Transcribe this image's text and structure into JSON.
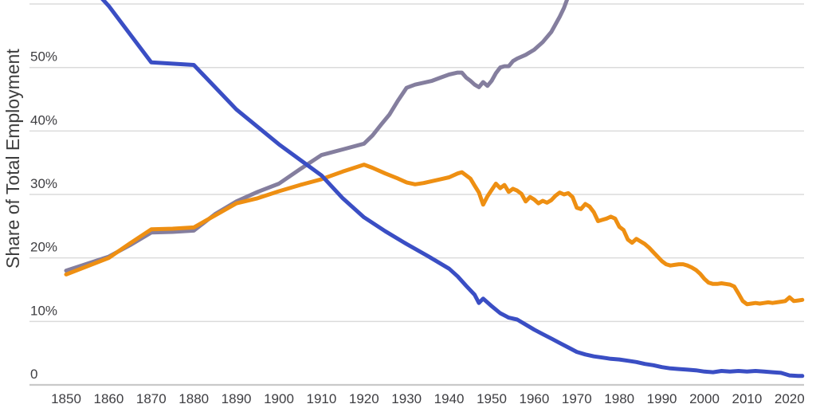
{
  "chart_data": {
    "type": "line",
    "title": "",
    "xlabel": "",
    "ylabel": "Share of Total Employment",
    "x_range_visible": [
      1850,
      2023
    ],
    "y_range_visible": [
      0,
      60.6
    ],
    "grid": true,
    "legend": "none visible (cropped above image)",
    "x_ticks": [
      1850,
      1860,
      1870,
      1880,
      1890,
      1900,
      1910,
      1920,
      1930,
      1940,
      1950,
      1960,
      1970,
      1980,
      1990,
      2000,
      2010,
      2020
    ],
    "y_ticks": [
      {
        "value": 0,
        "label": "0"
      },
      {
        "value": 10,
        "label": "10%"
      },
      {
        "value": 20,
        "label": "20%"
      },
      {
        "value": 30,
        "label": "30%"
      },
      {
        "value": 40,
        "label": "40%"
      },
      {
        "value": 50,
        "label": "50%"
      },
      {
        "value": 60,
        "label": ""
      }
    ],
    "series": [
      {
        "name": "slate-rising-line",
        "color": "#847E9E",
        "points": [
          [
            1850,
            18.0
          ],
          [
            1860,
            20.2
          ],
          [
            1865,
            22.0
          ],
          [
            1870,
            24.0
          ],
          [
            1875,
            24.1
          ],
          [
            1880,
            24.3
          ],
          [
            1885,
            26.9
          ],
          [
            1890,
            28.9
          ],
          [
            1895,
            30.4
          ],
          [
            1900,
            31.7
          ],
          [
            1905,
            34.0
          ],
          [
            1910,
            36.2
          ],
          [
            1915,
            37.1
          ],
          [
            1920,
            38.0
          ],
          [
            1922,
            39.3
          ],
          [
            1924,
            41.0
          ],
          [
            1926,
            42.6
          ],
          [
            1928,
            44.8
          ],
          [
            1930,
            46.8
          ],
          [
            1932,
            47.3
          ],
          [
            1934,
            47.6
          ],
          [
            1936,
            47.9
          ],
          [
            1938,
            48.4
          ],
          [
            1940,
            48.9
          ],
          [
            1942,
            49.2
          ],
          [
            1943,
            49.2
          ],
          [
            1944,
            48.4
          ],
          [
            1945,
            47.9
          ],
          [
            1946,
            47.3
          ],
          [
            1947,
            46.9
          ],
          [
            1948,
            47.7
          ],
          [
            1949,
            47.1
          ],
          [
            1950,
            47.9
          ],
          [
            1951,
            49.1
          ],
          [
            1952,
            50.0
          ],
          [
            1953,
            50.2
          ],
          [
            1954,
            50.2
          ],
          [
            1955,
            51.0
          ],
          [
            1956,
            51.4
          ],
          [
            1958,
            52.0
          ],
          [
            1960,
            52.8
          ],
          [
            1962,
            54.0
          ],
          [
            1964,
            55.6
          ],
          [
            1966,
            58.0
          ],
          [
            1967,
            59.4
          ],
          [
            1968,
            61.2
          ]
        ]
      },
      {
        "name": "orange-line",
        "color": "#EE8F12",
        "points": [
          [
            1850,
            17.4
          ],
          [
            1860,
            20.0
          ],
          [
            1865,
            22.3
          ],
          [
            1870,
            24.5
          ],
          [
            1875,
            24.6
          ],
          [
            1880,
            24.8
          ],
          [
            1885,
            26.7
          ],
          [
            1890,
            28.6
          ],
          [
            1895,
            29.4
          ],
          [
            1900,
            30.5
          ],
          [
            1905,
            31.5
          ],
          [
            1910,
            32.4
          ],
          [
            1915,
            33.6
          ],
          [
            1920,
            34.7
          ],
          [
            1922,
            34.2
          ],
          [
            1925,
            33.3
          ],
          [
            1928,
            32.5
          ],
          [
            1930,
            31.9
          ],
          [
            1932,
            31.6
          ],
          [
            1934,
            31.8
          ],
          [
            1936,
            32.1
          ],
          [
            1938,
            32.4
          ],
          [
            1940,
            32.7
          ],
          [
            1942,
            33.3
          ],
          [
            1943,
            33.5
          ],
          [
            1944,
            33.0
          ],
          [
            1945,
            32.5
          ],
          [
            1946,
            31.4
          ],
          [
            1947,
            30.3
          ],
          [
            1948,
            28.4
          ],
          [
            1949,
            29.7
          ],
          [
            1950,
            30.7
          ],
          [
            1951,
            31.7
          ],
          [
            1952,
            31.0
          ],
          [
            1953,
            31.5
          ],
          [
            1954,
            30.4
          ],
          [
            1955,
            30.9
          ],
          [
            1956,
            30.6
          ],
          [
            1957,
            30.1
          ],
          [
            1958,
            28.9
          ],
          [
            1959,
            29.6
          ],
          [
            1960,
            29.2
          ],
          [
            1961,
            28.6
          ],
          [
            1962,
            29.0
          ],
          [
            1963,
            28.7
          ],
          [
            1964,
            29.1
          ],
          [
            1965,
            29.8
          ],
          [
            1966,
            30.3
          ],
          [
            1967,
            30.0
          ],
          [
            1968,
            30.2
          ],
          [
            1969,
            29.6
          ],
          [
            1970,
            27.9
          ],
          [
            1971,
            27.7
          ],
          [
            1972,
            28.5
          ],
          [
            1973,
            28.1
          ],
          [
            1974,
            27.2
          ],
          [
            1975,
            25.8
          ],
          [
            1976,
            26.0
          ],
          [
            1977,
            26.2
          ],
          [
            1978,
            26.5
          ],
          [
            1979,
            26.2
          ],
          [
            1980,
            24.9
          ],
          [
            1981,
            24.4
          ],
          [
            1982,
            22.9
          ],
          [
            1983,
            22.4
          ],
          [
            1984,
            23.0
          ],
          [
            1985,
            22.6
          ],
          [
            1986,
            22.2
          ],
          [
            1987,
            21.6
          ],
          [
            1988,
            20.9
          ],
          [
            1989,
            20.2
          ],
          [
            1990,
            19.5
          ],
          [
            1991,
            19.0
          ],
          [
            1992,
            18.8
          ],
          [
            1993,
            18.9
          ],
          [
            1994,
            19.0
          ],
          [
            1995,
            19.0
          ],
          [
            1996,
            18.8
          ],
          [
            1997,
            18.5
          ],
          [
            1998,
            18.1
          ],
          [
            1999,
            17.5
          ],
          [
            2000,
            16.7
          ],
          [
            2001,
            16.1
          ],
          [
            2002,
            15.9
          ],
          [
            2003,
            15.9
          ],
          [
            2004,
            16.0
          ],
          [
            2005,
            15.9
          ],
          [
            2006,
            15.8
          ],
          [
            2007,
            15.5
          ],
          [
            2008,
            14.4
          ],
          [
            2009,
            13.2
          ],
          [
            2010,
            12.7
          ],
          [
            2011,
            12.8
          ],
          [
            2012,
            12.9
          ],
          [
            2013,
            12.8
          ],
          [
            2014,
            12.9
          ],
          [
            2015,
            13.0
          ],
          [
            2016,
            12.9
          ],
          [
            2017,
            13.0
          ],
          [
            2018,
            13.1
          ],
          [
            2019,
            13.2
          ],
          [
            2020,
            13.8
          ],
          [
            2021,
            13.2
          ],
          [
            2022,
            13.3
          ],
          [
            2023,
            13.4
          ]
        ]
      },
      {
        "name": "blue-declining-line",
        "color": "#3A4EC4",
        "points": [
          [
            1850,
            67.0
          ],
          [
            1860,
            59.7
          ],
          [
            1870,
            50.8
          ],
          [
            1880,
            50.4
          ],
          [
            1890,
            43.4
          ],
          [
            1900,
            37.9
          ],
          [
            1910,
            33.0
          ],
          [
            1915,
            29.4
          ],
          [
            1920,
            26.4
          ],
          [
            1925,
            24.2
          ],
          [
            1930,
            22.2
          ],
          [
            1935,
            20.3
          ],
          [
            1940,
            18.3
          ],
          [
            1942,
            17.1
          ],
          [
            1944,
            15.6
          ],
          [
            1946,
            14.2
          ],
          [
            1947,
            12.9
          ],
          [
            1948,
            13.6
          ],
          [
            1950,
            12.4
          ],
          [
            1952,
            11.3
          ],
          [
            1954,
            10.6
          ],
          [
            1956,
            10.3
          ],
          [
            1958,
            9.5
          ],
          [
            1960,
            8.7
          ],
          [
            1962,
            8.0
          ],
          [
            1964,
            7.3
          ],
          [
            1966,
            6.6
          ],
          [
            1968,
            5.9
          ],
          [
            1970,
            5.2
          ],
          [
            1972,
            4.8
          ],
          [
            1974,
            4.5
          ],
          [
            1976,
            4.3
          ],
          [
            1978,
            4.1
          ],
          [
            1980,
            4.0
          ],
          [
            1982,
            3.8
          ],
          [
            1984,
            3.6
          ],
          [
            1986,
            3.3
          ],
          [
            1988,
            3.1
          ],
          [
            1990,
            2.8
          ],
          [
            1992,
            2.6
          ],
          [
            1994,
            2.5
          ],
          [
            1996,
            2.4
          ],
          [
            1998,
            2.3
          ],
          [
            2000,
            2.1
          ],
          [
            2002,
            2.0
          ],
          [
            2004,
            2.2
          ],
          [
            2006,
            2.1
          ],
          [
            2008,
            2.2
          ],
          [
            2010,
            2.1
          ],
          [
            2012,
            2.2
          ],
          [
            2014,
            2.1
          ],
          [
            2016,
            2.0
          ],
          [
            2018,
            1.9
          ],
          [
            2020,
            1.5
          ],
          [
            2022,
            1.4
          ],
          [
            2023,
            1.4
          ]
        ]
      }
    ]
  },
  "colors": {
    "background": "#FFFFFF",
    "gridline": "#DBDBDB",
    "axis_line": "#C9C9C9",
    "tick_text": "#3E3E42",
    "axis_title_text": "#3E3E3E"
  }
}
